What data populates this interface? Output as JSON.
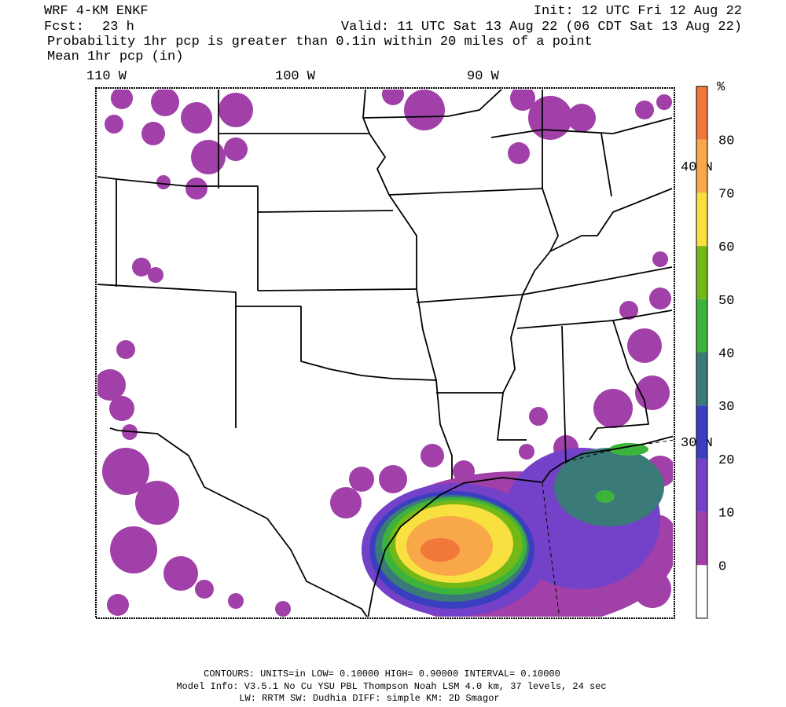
{
  "header": {
    "model": "WRF 4-KM ENKF",
    "init": "Init: 12 UTC Fri 12 Aug 22",
    "fcst_label": "Fcst:",
    "fcst": "23 h",
    "valid": "Valid: 11 UTC Sat 13 Aug 22 (06 CDT Sat 13 Aug 22)",
    "line1": "Probability 1hr pcp is greater than 0.1in within 20 miles of a point",
    "line2": "Mean 1hr pcp (in)"
  },
  "map": {
    "lon_labels": [
      "110 W",
      "100 W",
      "90 W"
    ],
    "lat_labels": [
      "40 N",
      "30 N"
    ]
  },
  "colorbar": {
    "unit": "%",
    "labels": [
      "0",
      "10",
      "20",
      "30",
      "40",
      "50",
      "60",
      "70",
      "80"
    ],
    "colors": [
      "#ffffff",
      "#a040a8",
      "#7442c8",
      "#3a3ec0",
      "#3a7a78",
      "#3cb43c",
      "#74b818",
      "#f8e040",
      "#f8a848",
      "#f07838"
    ]
  },
  "footer": {
    "line1": "CONTOURS:  UNITS=in  LOW= 0.10000      HIGH= 0.90000      INTERVAL=  0.10000",
    "line2": "Model Info: V3.5.1    No Cu   YSU PBL  Thompson     Noah LSM  4.0 km,  37 levels,    24 sec",
    "line3": "LW: RRTM SW: Dudhia  DIFF: simple KM: 2D Smagor"
  }
}
